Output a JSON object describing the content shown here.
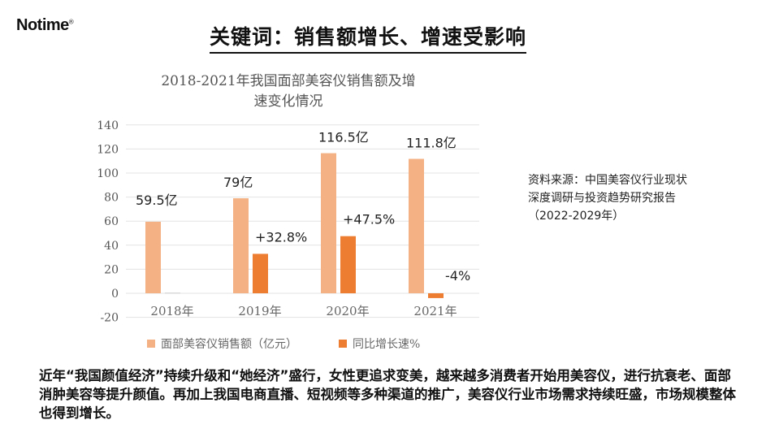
{
  "logo": {
    "text": "Notime",
    "mark": "®"
  },
  "headline": "关键词：销售额增长、增速受影响",
  "source": [
    "资料来源：中国美容仪行业现状",
    "深度调研与投资趋势研究报告",
    "（2022-2029年）"
  ],
  "body_text": "近年“我国颜值经济”持续升级和“她经济”盛行，女性更追求变美，越来越多消费者开始用美容仪，进行抗衰老、面部消肿美容等提升颜值。再加上我国电商直播、短视频等多种渠道的推广，美容仪行业市场需求持续旺盛，市场规模整体也得到增长。",
  "chart_data": {
    "type": "bar",
    "title_lines": [
      "2018-2021年我国面部美容仪销售额及增",
      "速变化情况"
    ],
    "categories": [
      "2018年",
      "2019年",
      "2020年",
      "2021年"
    ],
    "series": [
      {
        "name": "面部美容仪销售额（亿元）",
        "values": [
          59.5,
          79,
          116.5,
          111.8
        ],
        "labels": [
          "59.5亿",
          "79亿",
          "116.5亿",
          "111.8亿"
        ],
        "color": "#F4B183"
      },
      {
        "name": "同比增长速%",
        "values": [
          0.5,
          32.8,
          47.5,
          -4
        ],
        "labels": [
          "",
          "+32.8%",
          "+47.5%",
          "-4%"
        ],
        "color": "#ED7D31"
      }
    ],
    "yticks": [
      140,
      120,
      100,
      80,
      60,
      40,
      20,
      0,
      -20
    ],
    "ylim": [
      -20,
      140
    ],
    "grid": true,
    "legend": "bottom"
  }
}
